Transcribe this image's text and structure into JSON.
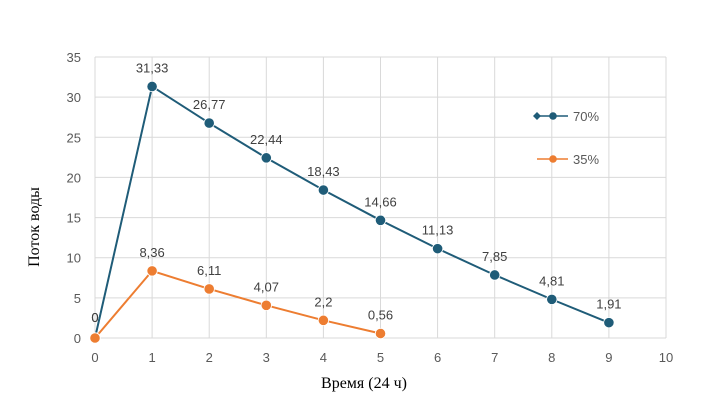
{
  "chart_data": {
    "type": "line",
    "xlabel": "Время (24 ч)",
    "ylabel": "Поток воды",
    "xlim": [
      0,
      10
    ],
    "ylim": [
      0,
      35
    ],
    "x_ticks": [
      "0",
      "1",
      "2",
      "3",
      "4",
      "5",
      "6",
      "7",
      "8",
      "9",
      "10"
    ],
    "y_ticks": [
      "0",
      "5",
      "10",
      "15",
      "20",
      "25",
      "30",
      "35"
    ],
    "grid": "horizontal",
    "legend_position": "right",
    "series": [
      {
        "name": "70%",
        "color": "#1f5c78",
        "marker": "circle",
        "legend_marker": "diamond-circle",
        "x": [
          0,
          1,
          2,
          3,
          4,
          5,
          6,
          7,
          8,
          9
        ],
        "y": [
          0,
          31.33,
          26.77,
          22.44,
          18.43,
          14.66,
          11.13,
          7.85,
          4.81,
          1.91
        ],
        "labels": [
          "0",
          "31,33",
          "26,77",
          "22,44",
          "18,43",
          "14,66",
          "11,13",
          "7,85",
          "4,81",
          "1,91"
        ]
      },
      {
        "name": "35%",
        "color": "#ed7d31",
        "marker": "circle",
        "legend_marker": "dash-circle",
        "x": [
          0,
          1,
          2,
          3,
          4,
          5
        ],
        "y": [
          0,
          8.36,
          6.11,
          4.07,
          2.2,
          0.56
        ],
        "labels": [
          "0",
          "8,36",
          "6,11",
          "4,07",
          "2,2",
          "0,56"
        ]
      }
    ]
  }
}
